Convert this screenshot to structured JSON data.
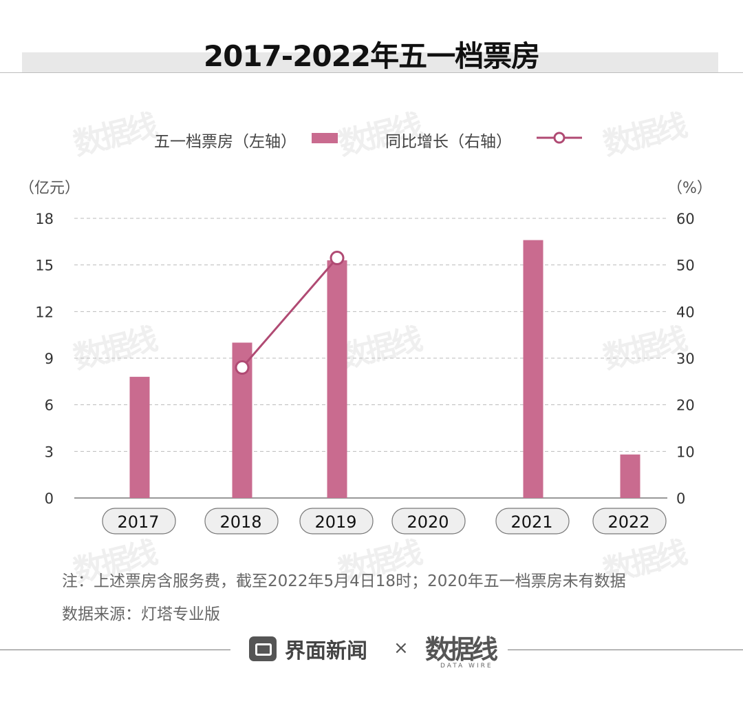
{
  "title": "2017-2022年五一档票房",
  "legend": {
    "bar_label": "五一档票房（左轴）",
    "line_label": "同比增长（右轴）"
  },
  "left_unit": "（亿元）",
  "right_unit": "（%）",
  "footnote": {
    "note": "注：上述票房含服务费，截至2022年5月4日18时；2020年五一档票房未有数据",
    "source": "数据来源：灯塔专业版"
  },
  "footer": {
    "brand": "界面新闻",
    "times": "×",
    "partner": "数据线",
    "partner_sub": "DATA WIRE"
  },
  "colors": {
    "bar": "#c96b8f",
    "line": "#b04a73",
    "grid": "#bbbbbb"
  },
  "chart_data": {
    "type": "bar",
    "categories": [
      "2017",
      "2018",
      "2019",
      "2020",
      "2021",
      "2022"
    ],
    "series": [
      {
        "name": "五一档票房",
        "axis": "left",
        "type": "bar",
        "values": [
          7.8,
          10.0,
          15.3,
          null,
          16.6,
          2.8
        ]
      },
      {
        "name": "同比增长",
        "axis": "right",
        "type": "line",
        "values": [
          null,
          28,
          51.5,
          null,
          null,
          null
        ]
      }
    ],
    "left_axis": {
      "ticks": [
        0,
        3,
        6,
        9,
        12,
        15,
        18
      ],
      "ylim": [
        0,
        18
      ]
    },
    "right_axis": {
      "ticks": [
        0,
        10,
        20,
        30,
        40,
        50,
        60
      ],
      "ylim": [
        0,
        60
      ]
    },
    "grid": "dashed-horizontal",
    "legend_position": "top-center"
  }
}
